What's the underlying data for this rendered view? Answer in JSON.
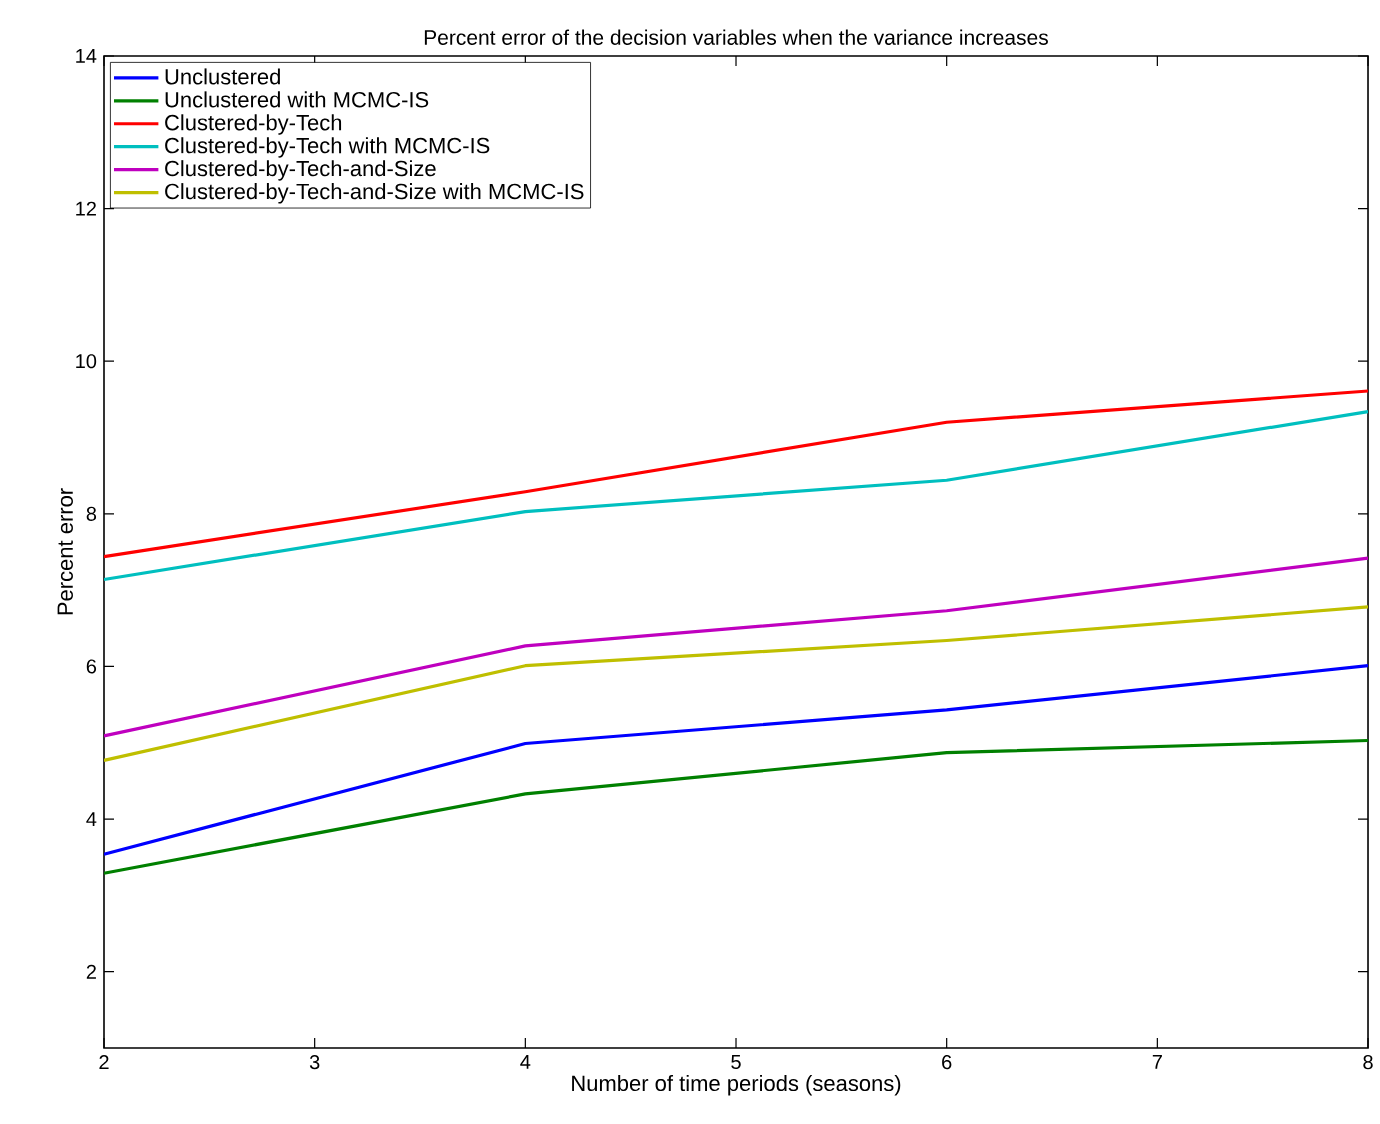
{
  "chart_data": {
    "type": "line",
    "title": "Percent error of the decision variables when the variance increases",
    "xlabel": "Number of time periods (seasons)",
    "ylabel": "Percent error",
    "x": [
      2,
      4,
      6,
      8
    ],
    "xlim": [
      2,
      8
    ],
    "ylim": [
      1,
      14
    ],
    "xticks": [
      2,
      3,
      4,
      5,
      6,
      7,
      8
    ],
    "yticks": [
      2,
      4,
      6,
      8,
      10,
      12,
      14
    ],
    "legend": "top left",
    "grid": false,
    "line_style": "solid",
    "marker": "none",
    "series": [
      {
        "name": "Unclustered",
        "color": "#0000ff",
        "values": [
          3.54,
          4.99,
          5.43,
          6.01
        ]
      },
      {
        "name": "Unclustered with MCMC-IS",
        "color": "#008000",
        "values": [
          3.29,
          4.33,
          4.87,
          5.03
        ]
      },
      {
        "name": "Clustered-by-Tech",
        "color": "#ff0000",
        "values": [
          7.44,
          8.29,
          9.2,
          9.61
        ]
      },
      {
        "name": "Clustered-by-Tech with MCMC-IS",
        "color": "#00bfbf",
        "values": [
          7.14,
          8.03,
          8.44,
          9.34
        ]
      },
      {
        "name": "Clustered-by-Tech-and-Size",
        "color": "#bf00bf",
        "values": [
          5.09,
          6.27,
          6.73,
          7.42
        ]
      },
      {
        "name": "Clustered-by-Tech-and-Size with MCMC-IS",
        "color": "#bfbf00",
        "values": [
          4.77,
          6.01,
          6.34,
          6.78
        ]
      }
    ]
  }
}
